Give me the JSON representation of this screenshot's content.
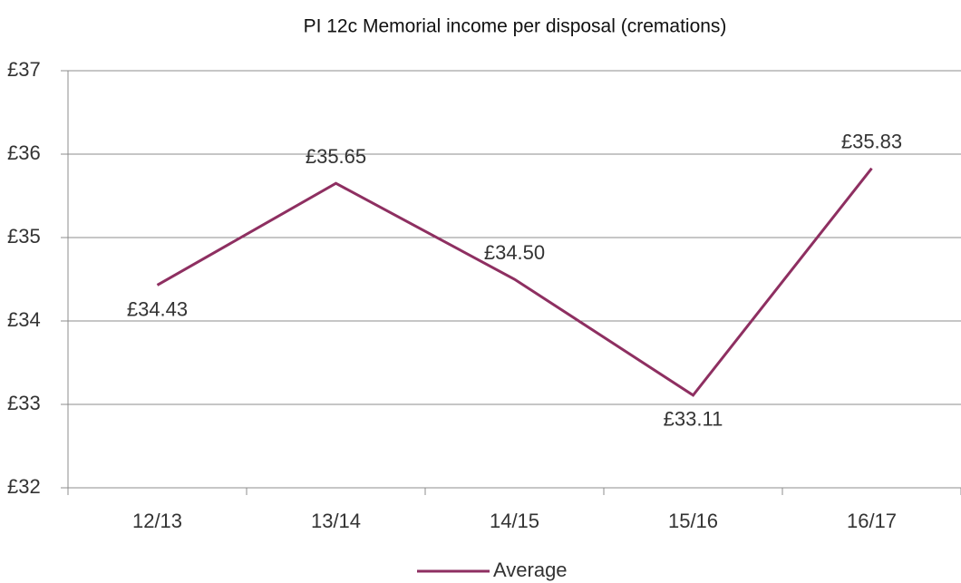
{
  "chart_data": {
    "type": "line",
    "title": "PI 12c Memorial income per disposal (cremations)",
    "categories": [
      "12/13",
      "13/14",
      "14/15",
      "15/16",
      "16/17"
    ],
    "series": [
      {
        "name": "Average",
        "color": "#8e2f61",
        "values": [
          34.43,
          35.65,
          34.5,
          33.11,
          35.83
        ],
        "value_labels": [
          "£34.43",
          "£35.65",
          "£34.50",
          "£33.11",
          "£35.83"
        ]
      }
    ],
    "ylim": [
      32,
      37
    ],
    "yticks": [
      {
        "value": 32,
        "label": "£32"
      },
      {
        "value": 33,
        "label": "£33"
      },
      {
        "value": 34,
        "label": "£34"
      },
      {
        "value": 35,
        "label": "£35"
      },
      {
        "value": 36,
        "label": "£36"
      },
      {
        "value": 37,
        "label": "£37"
      }
    ],
    "grid": true,
    "legend": "bottom"
  }
}
